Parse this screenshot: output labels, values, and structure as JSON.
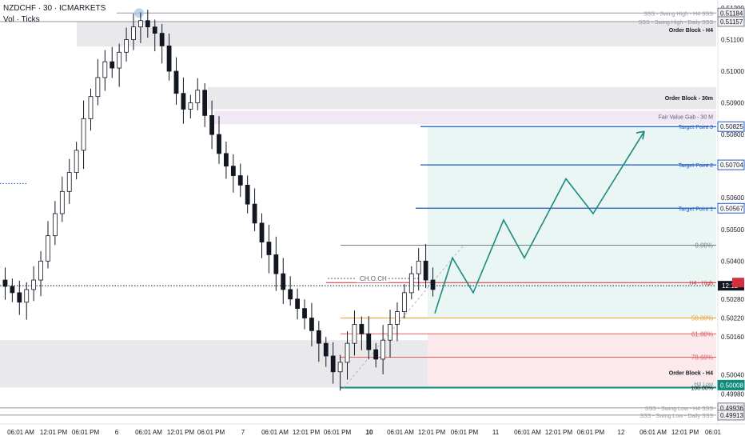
{
  "header": {
    "symbol_line": "NZDCHF · 30 · ICMARKETS",
    "indicator_line": "Vol · Ticks"
  },
  "colors": {
    "candle": "#131722",
    "zone_gray": "#e9e9ec",
    "fvg": "#f1e8f6",
    "target_zone": "#e9f6f4",
    "target_line": "#1e57c8",
    "projection": "#1a8a80",
    "h4_high": "#d32f3f",
    "swing_low_line": "#0c8a78",
    "fib_0": "#787b86",
    "fib_50": "#f0a030",
    "fib_618": "#e06060",
    "fib_786": "#e06060",
    "axis_text": "#131722",
    "price_tag_blue": "#1e57c8",
    "price_tag_gray": "#5d606b",
    "price_tag_green": "#0c8a78"
  },
  "chart_data": {
    "type": "candlestick",
    "y_axis": {
      "ylim": [
        0.49885,
        0.51215
      ],
      "tick_labels": [
        "0.51200",
        "0.51100",
        "0.51000",
        "0.50900",
        "0.50800",
        "0.50600",
        "0.50500",
        "0.50400",
        "0.50280",
        "0.50220",
        "0.50160",
        "0.50040",
        "0.49980"
      ]
    },
    "x_axis": {
      "tick_labels": [
        "06:01 AM",
        "12:01 PM",
        "06:01 PM",
        "6",
        "06:01 AM",
        "12:01 PM",
        "06:01 PM",
        "7",
        "06:01 AM",
        "12:01 PM",
        "06:01 PM",
        "10",
        "06:01 AM",
        "12:01 PM",
        "06:01 PM",
        "11",
        "06:01 AM",
        "12:01 PM",
        "06:01 PM",
        "12",
        "06:01 AM",
        "12:01 PM",
        "06:01"
      ]
    },
    "close_path": [
      0.5032,
      0.503,
      0.5027,
      0.5031,
      0.5034,
      0.504,
      0.5048,
      0.5055,
      0.5062,
      0.5068,
      0.5075,
      0.5085,
      0.5092,
      0.5098,
      0.5103,
      0.5101,
      0.5106,
      0.511,
      0.5114,
      0.5116,
      0.5114,
      0.5112,
      0.5108,
      0.51,
      0.5093,
      0.5088,
      0.509,
      0.5094,
      0.5086,
      0.508,
      0.5074,
      0.507,
      0.5067,
      0.5064,
      0.5058,
      0.5052,
      0.5046,
      0.5042,
      0.5036,
      0.5031,
      0.5028,
      0.5025,
      0.5022,
      0.5018,
      0.5014,
      0.501,
      0.5005,
      0.5008,
      0.5014,
      0.502,
      0.5017,
      0.5012,
      0.5009,
      0.5015,
      0.502,
      0.5024,
      0.503,
      0.5036,
      0.504,
      0.5034,
      0.5031
    ],
    "levels": [
      {
        "label": "SSS - Swing High - H4 SSS",
        "price": 0.51184,
        "tag": "0.51184"
      },
      {
        "label": "SSS - Swing High - Daily SSS",
        "price": 0.51157,
        "tag": "0.51157"
      },
      {
        "label": "Target Point 3",
        "price": 0.50825,
        "tag": "0.50825"
      },
      {
        "label": "Target Point 2",
        "price": 0.50704,
        "tag": "0.50704"
      },
      {
        "label": "Target Point 1",
        "price": 0.50567,
        "tag": "0.50567"
      },
      {
        "label": "H4 - High",
        "price": 0.50332,
        "tag": ""
      },
      {
        "label": "H4 Low",
        "price": 0.50008,
        "tag": "0.50008"
      },
      {
        "label": "SSS - Swing Low - H4 SSS",
        "price": 0.49936,
        "tag": "0.49936"
      },
      {
        "label": "SSS - Swing Low - Daily SSS",
        "price": 0.49913,
        "tag": "0.49913"
      }
    ],
    "zones": [
      {
        "label": "Order Block - H4",
        "top": 0.51157,
        "bottom": 0.51078
      },
      {
        "label": "Order Block - 30m",
        "top": 0.5095,
        "bottom": 0.5088
      },
      {
        "label": "Fair Value Gab - 30 M",
        "top": 0.50875,
        "bottom": 0.50832
      },
      {
        "label": "Order Block - H4",
        "top": 0.5015,
        "bottom": 0.5
      }
    ],
    "fib": [
      {
        "label": "0.00%",
        "price": 0.5045
      },
      {
        "label": "50.00%",
        "price": 0.5022
      },
      {
        "label": "61.80%",
        "price": 0.5017
      },
      {
        "label": "78.60%",
        "price": 0.50096
      },
      {
        "label": "100.00%",
        "price": 0.5
      }
    ],
    "annotations": [
      "CH.O.CH"
    ],
    "current_price_tag": "12:12",
    "projection_path": [
      0.50235,
      0.5041,
      0.503,
      0.5053,
      0.5041,
      0.5066,
      0.5055,
      0.5081
    ]
  }
}
